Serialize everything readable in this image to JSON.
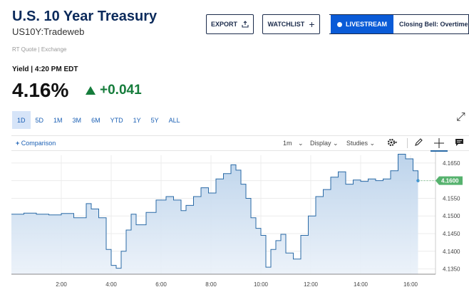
{
  "header": {
    "title": "U.S. 10 Year Treasury",
    "ticker": "US10Y:Tradeweb",
    "export_label": "EXPORT",
    "watchlist_label": "WATCHLIST",
    "livestream_label": "LIVESTREAM",
    "livestream_title": "Closing Bell: Overtime",
    "quote_meta": "RT Quote | Exchange"
  },
  "quote": {
    "yield_label": "Yield | 4:20 PM EDT",
    "price": "4.16%",
    "change": "+0.041",
    "change_color": "#157c3b"
  },
  "ranges": [
    "1D",
    "5D",
    "1M",
    "3M",
    "6M",
    "YTD",
    "1Y",
    "5Y",
    "ALL"
  ],
  "selected_range": "1D",
  "toolbar": {
    "comparison_label": "Comparison",
    "interval_label": "1m",
    "display_label": "Display",
    "studies_label": "Studies"
  },
  "chart_data": {
    "type": "area",
    "x_ticks": [
      "2:00",
      "4:00",
      "6:00",
      "8:00",
      "10:00",
      "12:00",
      "14:00",
      "16:00"
    ],
    "y_ticks": [
      "4.1650",
      "4.1600",
      "4.1550",
      "4.1500",
      "4.1450",
      "4.1400",
      "4.1350"
    ],
    "ylim": [
      4.1335,
      4.1672
    ],
    "xlim": [
      0,
      17
    ],
    "last_value_label": "4.1600",
    "accent": "#2a6aa6",
    "x": [
      0,
      0.5,
      1,
      1.5,
      2,
      2.5,
      3,
      3.2,
      3.5,
      3.8,
      4,
      4.2,
      4.4,
      4.6,
      4.8,
      5,
      5.4,
      5.8,
      6.2,
      6.5,
      6.8,
      7,
      7.3,
      7.6,
      7.9,
      8.2,
      8.5,
      8.8,
      9,
      9.2,
      9.4,
      9.6,
      9.8,
      10,
      10.2,
      10.4,
      10.6,
      10.8,
      11,
      11.3,
      11.6,
      11.9,
      12.2,
      12.5,
      12.8,
      13.1,
      13.4,
      13.7,
      14,
      14.3,
      14.6,
      14.9,
      15.2,
      15.5,
      15.8,
      16.1,
      16.3
    ],
    "y": [
      4.1505,
      4.1508,
      4.1505,
      4.1503,
      4.1507,
      4.1495,
      4.1535,
      4.152,
      4.1495,
      4.1405,
      4.136,
      4.1352,
      4.14,
      4.146,
      4.1505,
      4.1475,
      4.151,
      4.1545,
      4.1555,
      4.1545,
      4.1515,
      4.153,
      4.1555,
      4.158,
      4.1565,
      4.1605,
      4.162,
      4.1645,
      4.163,
      4.159,
      4.155,
      4.1495,
      4.1465,
      4.1445,
      4.1355,
      4.1405,
      4.143,
      4.1448,
      4.1395,
      4.1378,
      4.1445,
      4.15,
      4.1555,
      4.1575,
      4.161,
      4.1625,
      4.159,
      4.1602,
      4.1598,
      4.1605,
      4.16,
      4.1605,
      4.1628,
      4.1675,
      4.1662,
      4.1628,
      4.16
    ]
  }
}
